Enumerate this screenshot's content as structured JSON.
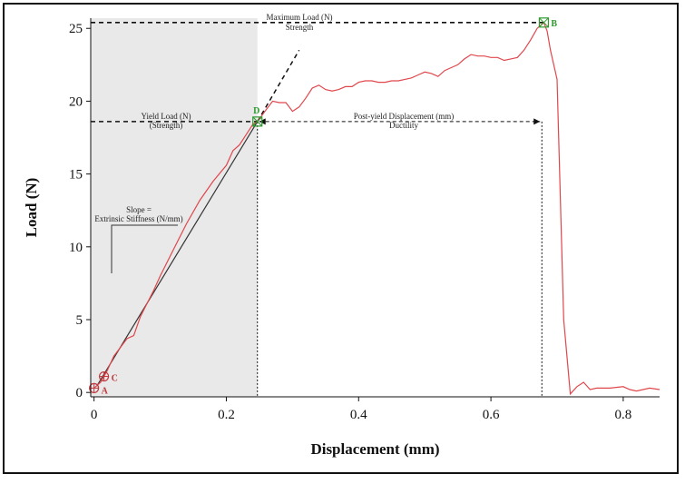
{
  "chart_data": {
    "type": "line",
    "xlabel": "Displacement (mm)",
    "ylabel": "Load (N)",
    "xlim": [
      -0.005,
      0.855
    ],
    "ylim": [
      -0.3,
      25.7
    ],
    "x_ticks": [
      0,
      0.2,
      0.4,
      0.6,
      0.8
    ],
    "x_tick_labels": [
      "0",
      "0.2",
      "0.4",
      "0.6",
      "0.8"
    ],
    "y_ticks": [
      0,
      5,
      10,
      15,
      20,
      25
    ],
    "y_tick_labels": [
      "0",
      "5",
      "10",
      "15",
      "20",
      "25"
    ],
    "grid": false,
    "elastic_region": [
      0,
      0.247
    ],
    "series": [
      {
        "color": "#e0474c",
        "x": [
          0,
          0.01,
          0.02,
          0.03,
          0.04,
          0.05,
          0.06,
          0.07,
          0.08,
          0.09,
          0.1,
          0.12,
          0.14,
          0.15,
          0.16,
          0.18,
          0.2,
          0.21,
          0.22,
          0.23,
          0.24,
          0.247,
          0.26,
          0.27,
          0.28,
          0.29,
          0.3,
          0.31,
          0.32,
          0.33,
          0.34,
          0.35,
          0.36,
          0.37,
          0.38,
          0.39,
          0.4,
          0.41,
          0.42,
          0.43,
          0.44,
          0.45,
          0.46,
          0.47,
          0.48,
          0.49,
          0.5,
          0.51,
          0.52,
          0.53,
          0.54,
          0.55,
          0.56,
          0.57,
          0.58,
          0.59,
          0.6,
          0.61,
          0.62,
          0.63,
          0.64,
          0.65,
          0.66,
          0.67,
          0.68,
          0.685,
          0.69,
          0.7,
          0.71,
          0.72,
          0.73,
          0.74,
          0.75,
          0.76,
          0.78,
          0.8,
          0.81,
          0.82,
          0.84,
          0.855
        ],
        "y": [
          0.3,
          0.7,
          1.5,
          2.5,
          3.1,
          3.7,
          3.9,
          5.2,
          6.1,
          7.0,
          8.0,
          9.8,
          11.6,
          12.4,
          13.2,
          14.5,
          15.6,
          16.6,
          17.0,
          17.7,
          18.4,
          18.6,
          19.4,
          20.0,
          19.9,
          19.9,
          19.3,
          19.6,
          20.2,
          20.9,
          21.1,
          20.8,
          20.7,
          20.8,
          21.0,
          21.0,
          21.3,
          21.4,
          21.4,
          21.3,
          21.3,
          21.4,
          21.4,
          21.5,
          21.6,
          21.8,
          22.0,
          21.9,
          21.7,
          22.1,
          22.3,
          22.5,
          22.9,
          23.2,
          23.1,
          23.1,
          23.0,
          23.0,
          22.8,
          22.9,
          23.0,
          23.5,
          24.2,
          25.0,
          25.4,
          24.8,
          23.5,
          21.5,
          5.0,
          -0.1,
          0.4,
          0.7,
          0.2,
          0.3,
          0.3,
          0.4,
          0.2,
          0.1,
          0.3,
          0.2
        ]
      }
    ],
    "stiffness_line": {
      "x": [
        0.005,
        0.247
      ],
      "y": [
        0.5,
        18.6
      ]
    },
    "extension_line": {
      "x": [
        0.247,
        0.31
      ],
      "y": [
        18.6,
        23.5
      ]
    },
    "points": [
      {
        "label": "A",
        "x": 0.0,
        "y": 0.3,
        "color": "#c0393e",
        "shape": "circle"
      },
      {
        "label": "C",
        "x": 0.015,
        "y": 1.1,
        "color": "#c0393e",
        "shape": "circle"
      },
      {
        "label": "D",
        "x": 0.247,
        "y": 18.6,
        "color": "#2e9a2e",
        "shape": "square"
      },
      {
        "label": "B",
        "x": 0.68,
        "y": 25.4,
        "color": "#2e9a2e",
        "shape": "square"
      }
    ],
    "annotations": {
      "max_load": [
        "Maximum Load (N)",
        "Strength"
      ],
      "yield_load": [
        "Yield Load (N)",
        "(Strength)"
      ],
      "post_yield": [
        "Post-yield Displacement (mm)",
        "Ductility"
      ],
      "slope": [
        "Slope =",
        "Extrinsic Stiffness (N/mm)"
      ]
    }
  }
}
